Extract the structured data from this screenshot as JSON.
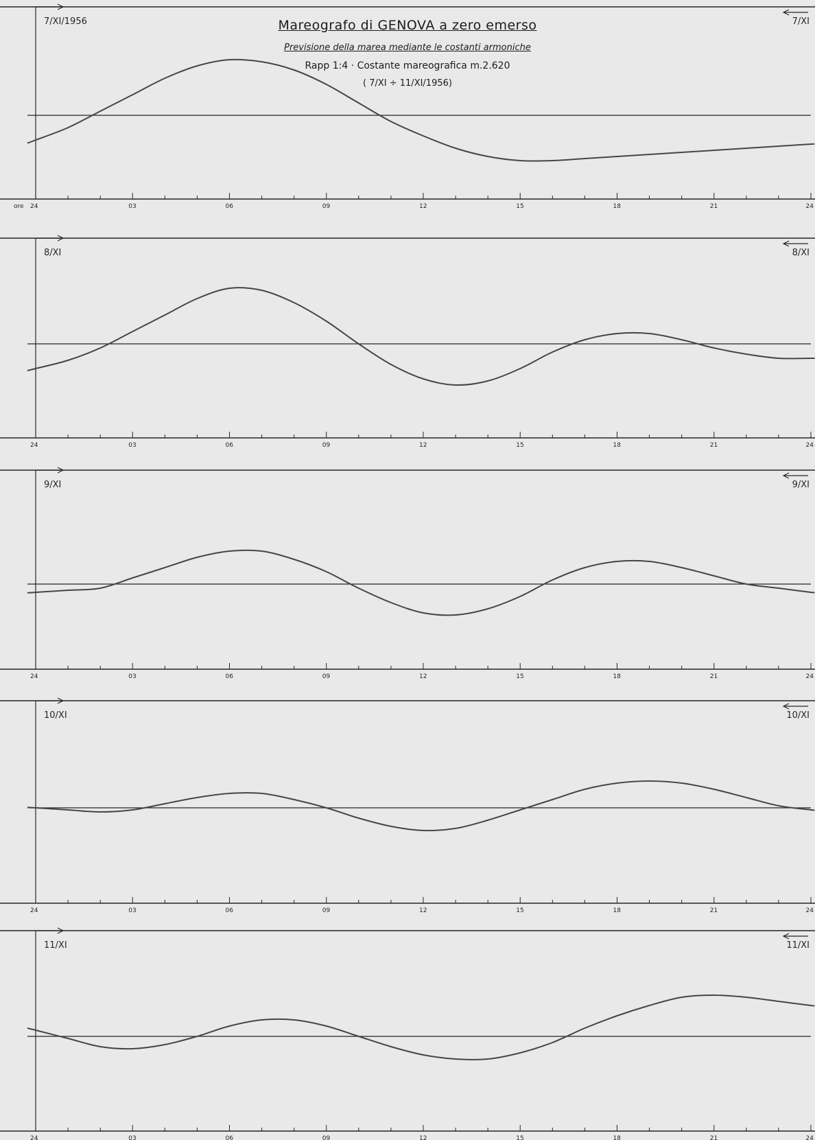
{
  "header": {
    "title": "Mareografo di GENOVA a zero emerso",
    "subtitle": "Previsione della marea mediante le costanti armoniche",
    "scale_line": "Rapp 1:4 · Costante mareografica m.2.620",
    "period": "( 7/XI ÷ 11/XI/1956)"
  },
  "style": {
    "paper": "#e9e9e9",
    "ink": "#262626",
    "curve": "#454545"
  },
  "chart_data": [
    {
      "type": "line",
      "panel_date_left": "7/XI/1956",
      "panel_date_right": "7/XI",
      "x_tick_prefix": "ore",
      "x_ticks": [
        "24",
        "03",
        "06",
        "09",
        "12",
        "15",
        "18",
        "21",
        "24"
      ],
      "xlim": [
        0,
        24
      ],
      "series": [
        {
          "x": [
            0,
            1,
            2,
            3,
            4,
            5,
            6,
            7,
            8,
            9,
            10,
            11,
            12,
            13,
            14,
            15,
            16,
            17,
            18,
            19,
            20,
            21,
            22,
            23,
            24
          ],
          "y": [
            -0.12,
            -0.06,
            0.02,
            0.1,
            0.18,
            0.24,
            0.27,
            0.26,
            0.22,
            0.15,
            0.06,
            -0.03,
            -0.1,
            -0.16,
            -0.2,
            -0.22,
            -0.22,
            -0.21,
            -0.2,
            -0.19,
            -0.18,
            -0.17,
            -0.16,
            -0.15,
            -0.14
          ]
        }
      ]
    },
    {
      "type": "line",
      "panel_date_left": "8/XI",
      "panel_date_right": "8/XI",
      "x_tick_prefix": "",
      "x_ticks": [
        "24",
        "03",
        "06",
        "09",
        "12",
        "15",
        "18",
        "21",
        "24"
      ],
      "xlim": [
        0,
        24
      ],
      "series": [
        {
          "x": [
            0,
            1,
            2,
            3,
            4,
            5,
            6,
            7,
            8,
            9,
            10,
            11,
            12,
            13,
            14,
            15,
            16,
            17,
            18,
            19,
            20,
            21,
            22,
            23,
            24
          ],
          "y": [
            -0.12,
            -0.08,
            -0.02,
            0.06,
            0.14,
            0.22,
            0.27,
            0.26,
            0.2,
            0.11,
            0.0,
            -0.1,
            -0.17,
            -0.2,
            -0.18,
            -0.12,
            -0.04,
            0.02,
            0.05,
            0.05,
            0.02,
            -0.02,
            -0.05,
            -0.07,
            -0.07
          ]
        }
      ]
    },
    {
      "type": "line",
      "panel_date_left": "9/XI",
      "panel_date_right": "9/XI",
      "x_tick_prefix": "",
      "x_ticks": [
        "24",
        "03",
        "06",
        "09",
        "12",
        "15",
        "18",
        "21",
        "24"
      ],
      "xlim": [
        0,
        24
      ],
      "series": [
        {
          "x": [
            0,
            1,
            2,
            3,
            4,
            5,
            6,
            7,
            8,
            9,
            10,
            11,
            12,
            13,
            14,
            15,
            16,
            17,
            18,
            19,
            20,
            21,
            22,
            23,
            24
          ],
          "y": [
            -0.04,
            -0.03,
            -0.02,
            0.03,
            0.08,
            0.13,
            0.16,
            0.16,
            0.12,
            0.06,
            -0.02,
            -0.09,
            -0.14,
            -0.15,
            -0.12,
            -0.06,
            0.02,
            0.08,
            0.11,
            0.11,
            0.08,
            0.04,
            0.0,
            -0.02,
            -0.04
          ]
        }
      ]
    },
    {
      "type": "line",
      "panel_date_left": "10/XI",
      "panel_date_right": "10/XI",
      "x_tick_prefix": "",
      "x_ticks": [
        "24",
        "03",
        "06",
        "09",
        "12",
        "15",
        "18",
        "21",
        "24"
      ],
      "xlim": [
        0,
        24
      ],
      "series": [
        {
          "x": [
            0,
            1,
            2,
            3,
            4,
            5,
            6,
            7,
            8,
            9,
            10,
            11,
            12,
            13,
            14,
            15,
            16,
            17,
            18,
            19,
            20,
            21,
            22,
            23,
            24
          ],
          "y": [
            0.0,
            -0.01,
            -0.02,
            -0.01,
            0.02,
            0.05,
            0.07,
            0.07,
            0.04,
            0.0,
            -0.05,
            -0.09,
            -0.11,
            -0.1,
            -0.06,
            -0.01,
            0.04,
            0.09,
            0.12,
            0.13,
            0.12,
            0.09,
            0.05,
            0.01,
            -0.01
          ]
        }
      ]
    },
    {
      "type": "line",
      "panel_date_left": "11/XI",
      "panel_date_right": "11/XI",
      "x_tick_prefix": "",
      "x_ticks": [
        "24",
        "03",
        "06",
        "09",
        "12",
        "15",
        "18",
        "21",
        "24"
      ],
      "xlim": [
        0,
        24
      ],
      "series": [
        {
          "x": [
            0,
            1,
            2,
            3,
            4,
            5,
            6,
            7,
            8,
            9,
            10,
            11,
            12,
            13,
            14,
            15,
            16,
            17,
            18,
            19,
            20,
            21,
            22,
            23,
            24
          ],
          "y": [
            0.03,
            -0.01,
            -0.05,
            -0.06,
            -0.04,
            0.0,
            0.05,
            0.08,
            0.08,
            0.05,
            0.0,
            -0.05,
            -0.09,
            -0.11,
            -0.11,
            -0.08,
            -0.03,
            0.04,
            0.1,
            0.15,
            0.19,
            0.2,
            0.19,
            0.17,
            0.15
          ]
        }
      ]
    }
  ]
}
